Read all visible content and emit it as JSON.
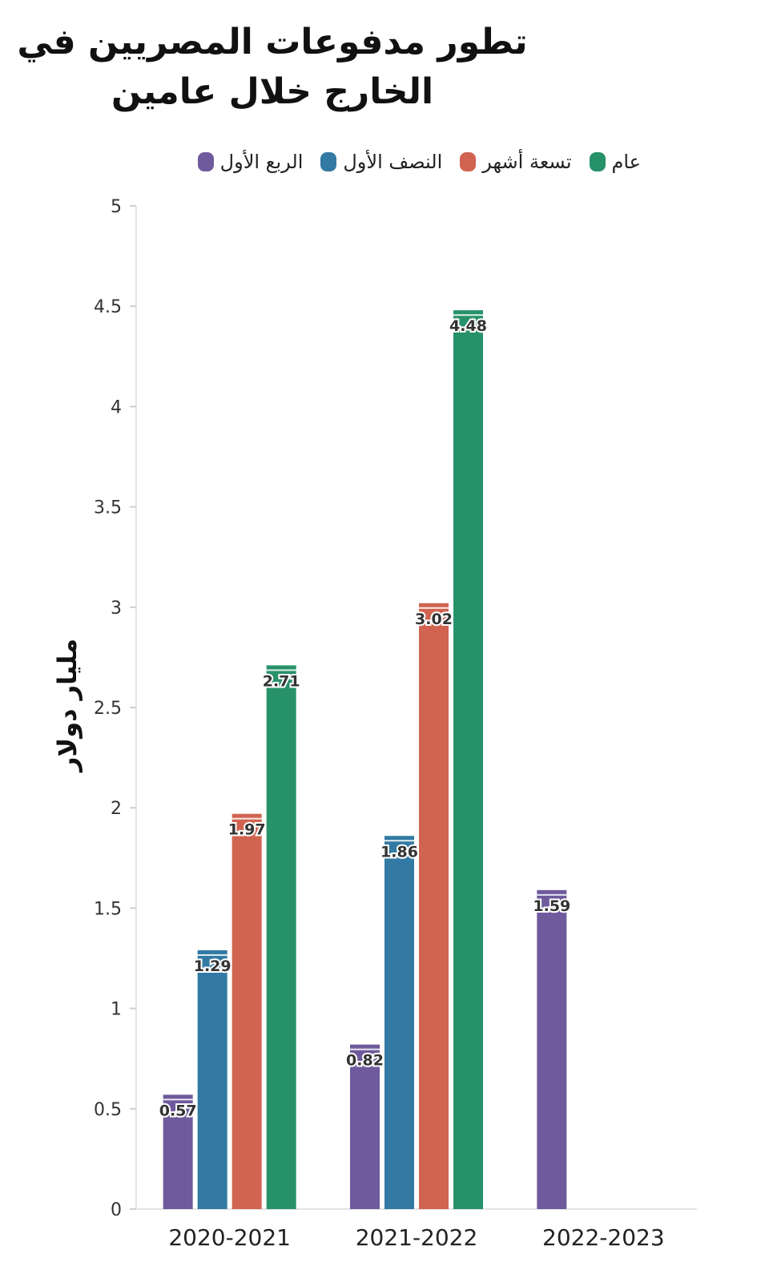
{
  "chart_data": {
    "type": "bar",
    "title": "تطور مدفوعات المصريين في\nالخارج خلال عامين",
    "ylabel": "مليار دولار",
    "xlabel": "",
    "categories": [
      "2020-2021",
      "2021-2022",
      "2022-2023"
    ],
    "series": [
      {
        "name": "الربع الأول",
        "color": "#6e5a9c",
        "values": [
          0.57,
          0.82,
          1.59
        ]
      },
      {
        "name": "النصف الأول",
        "color": "#327aa3",
        "values": [
          1.29,
          1.86,
          null
        ]
      },
      {
        "name": "تسعة أشهر",
        "color": "#d06451",
        "values": [
          1.97,
          3.02,
          null
        ]
      },
      {
        "name": "عام",
        "color": "#27916a",
        "values": [
          2.71,
          4.48,
          null
        ]
      }
    ],
    "ylim": [
      0,
      5
    ],
    "yticks": [
      0,
      0.5,
      1,
      1.5,
      2,
      2.5,
      3,
      3.5,
      4,
      4.5,
      5
    ],
    "data_labels": true,
    "grid": false,
    "legend": "top"
  }
}
